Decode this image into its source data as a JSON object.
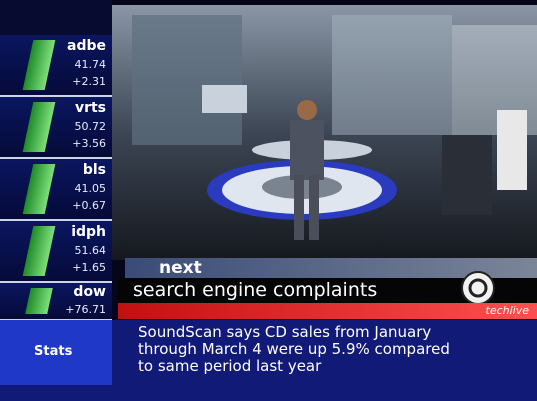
{
  "tickers": [
    {
      "symbol": "adbe",
      "price": "41.74",
      "change": "+2.31"
    },
    {
      "symbol": "vrts",
      "price": "50.72",
      "change": "+3.56"
    },
    {
      "symbol": "bls",
      "price": "41.05",
      "change": "+0.67"
    },
    {
      "symbol": "idph",
      "price": "51.64",
      "change": "+1.65"
    },
    {
      "symbol": "dow",
      "change": "+76.71"
    }
  ],
  "next_label": "next",
  "headline": "search engine complaints",
  "show": "techlive",
  "section": "Stats",
  "story": [
    "SoundScan says CD sales from January",
    "through March 4 were up 5.9% compared",
    "to same period last year"
  ]
}
